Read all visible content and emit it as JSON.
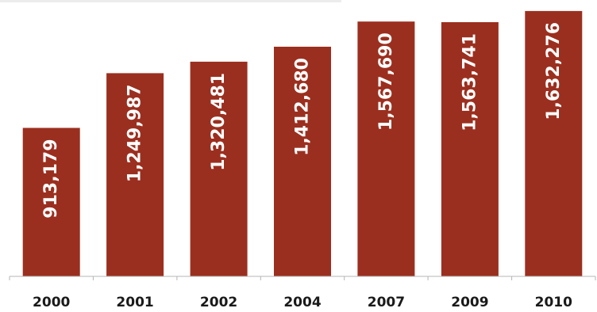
{
  "colors": {
    "bar": "#9b2f1f",
    "value_label": "#ffffff",
    "tick_label": "#1a1a1a"
  },
  "chart_data": {
    "type": "bar",
    "categories": [
      "2000",
      "2001",
      "2002",
      "2004",
      "2007",
      "2009",
      "2010"
    ],
    "values": [
      913179,
      1249987,
      1320481,
      1412680,
      1567690,
      1563741,
      1632276
    ],
    "value_labels": [
      "913,179",
      "1,249,987",
      "1,320,481",
      "1,412,680",
      "1,567,690",
      "1,563,741",
      "1,632,276"
    ],
    "ylim": [
      0,
      1700000
    ],
    "grid": false,
    "legend": "none",
    "value_label_orientation": "vertical"
  }
}
